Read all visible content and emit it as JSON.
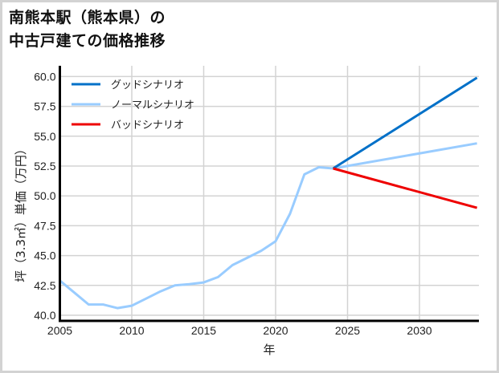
{
  "title": {
    "line1": "南熊本駅（熊本県）の",
    "line2": "中古戸建ての価格推移"
  },
  "colors": {
    "good": "#0070c8",
    "normal": "#99ccff",
    "bad": "#ee0000",
    "grid": "#d3d3d3",
    "axis": "#000000",
    "frame": "#d3d3d3"
  },
  "chart_data": {
    "type": "line",
    "title": "南熊本駅（熊本県）の中古戸建ての価格推移",
    "xlabel": "年",
    "ylabel": "坪（3.3㎡）単価（万円）",
    "xlim": [
      2005,
      2034
    ],
    "ylim": [
      39.6,
      61.0
    ],
    "grid": true,
    "legend_position": "upper left",
    "x_ticks": [
      "2005",
      "2010",
      "2015",
      "2020",
      "2025",
      "2030"
    ],
    "y_ticks": [
      "40.0",
      "42.5",
      "45.0",
      "47.5",
      "50.0",
      "52.5",
      "55.0",
      "57.5",
      "60.0"
    ],
    "legend": [
      "グッドシナリオ",
      "ノーマルシナリオ",
      "バッドシナリオ"
    ],
    "series": [
      {
        "name": "ノーマルシナリオ",
        "color": "#99ccff",
        "x": [
          2005,
          2006,
          2007,
          2008,
          2009,
          2010,
          2011,
          2012,
          2013,
          2014,
          2015,
          2016,
          2017,
          2018,
          2019,
          2020,
          2021,
          2022,
          2023,
          2024,
          2034
        ],
        "values": [
          42.9,
          41.9,
          40.9,
          40.9,
          40.6,
          40.8,
          41.4,
          42.0,
          42.5,
          42.6,
          42.75,
          43.2,
          44.2,
          44.8,
          45.4,
          46.2,
          48.5,
          51.8,
          52.4,
          52.3,
          54.4
        ]
      },
      {
        "name": "グッドシナリオ",
        "color": "#0070c8",
        "x": [
          2024,
          2034
        ],
        "values": [
          52.3,
          59.9
        ]
      },
      {
        "name": "バッドシナリオ",
        "color": "#ee0000",
        "x": [
          2024,
          2034
        ],
        "values": [
          52.3,
          49.0
        ]
      }
    ]
  }
}
